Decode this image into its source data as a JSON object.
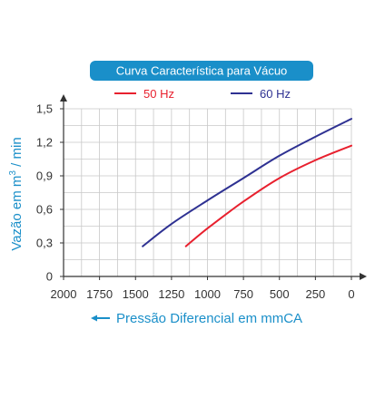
{
  "chart_data": {
    "type": "line",
    "title": "Curva Característica para Vácuo",
    "xlabel": "Pressão Diferencial em mmCA",
    "ylabel": "Vazão em m",
    "ylabel_sup": "3",
    "ylabel_suffix": " / min",
    "xlim": [
      2000,
      0
    ],
    "ylim": [
      0,
      1.5
    ],
    "x_ticks": [
      "2000",
      "1750",
      "1500",
      "1250",
      "1000",
      "750",
      "500",
      "250",
      "0"
    ],
    "y_ticks": [
      "0",
      "0,3",
      "0,6",
      "0,9",
      "1,2",
      "1,5"
    ],
    "grid": true,
    "legend_position": "top-center",
    "series": [
      {
        "name": "50 Hz",
        "color": "#e8202e",
        "x": [
          1150,
          1000,
          750,
          500,
          250,
          0
        ],
        "y": [
          0.27,
          0.43,
          0.67,
          0.88,
          1.04,
          1.17
        ]
      },
      {
        "name": "60 Hz",
        "color": "#2e3192",
        "x": [
          1450,
          1250,
          1000,
          750,
          500,
          250,
          0
        ],
        "y": [
          0.27,
          0.47,
          0.68,
          0.88,
          1.08,
          1.25,
          1.41
        ]
      }
    ],
    "colors": {
      "title_bg": "#1a8fc9",
      "axis_label": "#1a8fc9",
      "grid": "#c8c8c8",
      "axis": "#333333"
    }
  }
}
